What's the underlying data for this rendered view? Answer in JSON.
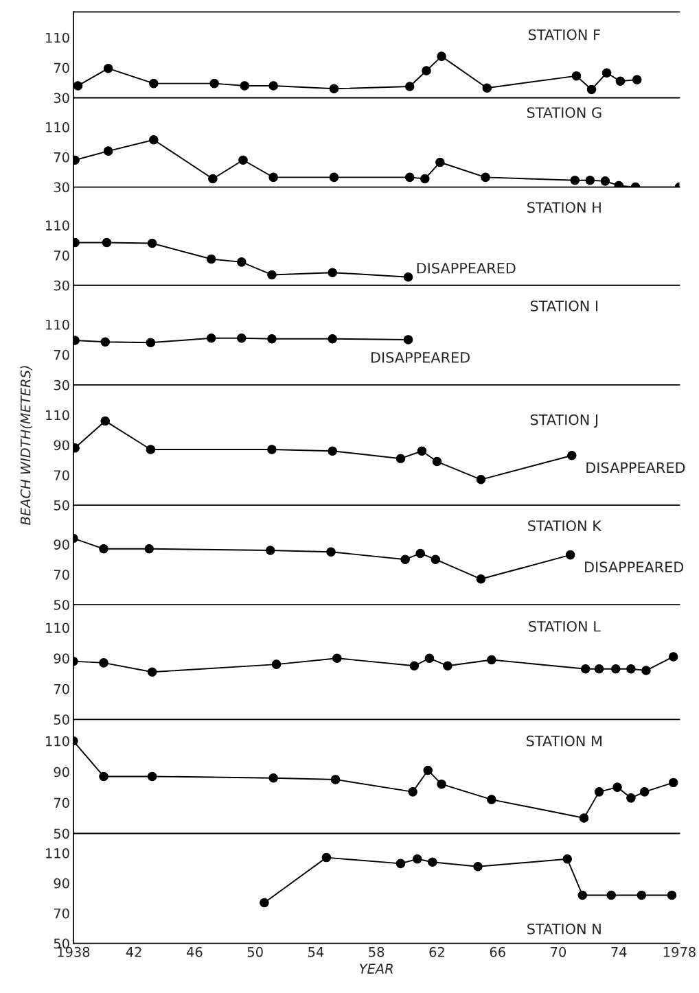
{
  "chart_data": [
    {
      "type": "line",
      "title": "STATION F",
      "tick_labels": "y",
      "marker": "circle",
      "line_style": "solid",
      "grid": false,
      "xlim": [
        1938,
        1978
      ],
      "ylim": [
        30,
        144
      ],
      "yticks": [
        30,
        70,
        110
      ],
      "xticks": [
        {
          "value": 1938,
          "label": null
        },
        {
          "value": 1942,
          "label": null
        },
        {
          "value": 1946,
          "label": null
        },
        {
          "value": 1950,
          "label": null
        },
        {
          "value": 1954,
          "label": null
        },
        {
          "value": 1958,
          "label": null
        },
        {
          "value": 1962,
          "label": null
        },
        {
          "value": 1966,
          "label": null
        },
        {
          "value": 1970,
          "label": null
        },
        {
          "value": 1974,
          "label": null
        },
        {
          "value": 1978,
          "label": null
        }
      ],
      "x": [
        1938.3,
        1940.3,
        1943.3,
        1947.3,
        1949.3,
        1951.2,
        1955.2,
        1960.2,
        1961.3,
        1962.3,
        1965.3,
        1971.2,
        1972.2,
        1973.2,
        1974.1,
        1975.2
      ],
      "series": [
        {
          "color": "#000000",
          "values": [
            46,
            69,
            49,
            49,
            46,
            46,
            42,
            45,
            66,
            85,
            43,
            59,
            41,
            63,
            52,
            54
          ]
        }
      ]
    },
    {
      "type": "line",
      "title": "STATION G",
      "tick_labels": "y",
      "marker": "circle",
      "line_style": "solid",
      "grid": false,
      "xlim": [
        1938,
        1978
      ],
      "ylim": [
        30,
        149
      ],
      "yticks": [
        30,
        70,
        110
      ],
      "xticks": [
        {
          "value": 1938,
          "label": null
        },
        {
          "value": 1942,
          "label": null
        },
        {
          "value": 1946,
          "label": null
        },
        {
          "value": 1950,
          "label": null
        },
        {
          "value": 1954,
          "label": null
        },
        {
          "value": 1958,
          "label": null
        },
        {
          "value": 1962,
          "label": null
        },
        {
          "value": 1966,
          "label": null
        },
        {
          "value": 1970,
          "label": null
        },
        {
          "value": 1974,
          "label": null
        },
        {
          "value": 1978,
          "label": null
        }
      ],
      "x": [
        1938.1,
        1940.3,
        1943.3,
        1947.2,
        1949.2,
        1951.2,
        1955.2,
        1960.2,
        1961.2,
        1962.2,
        1965.2,
        1971.1,
        1972.1,
        1973.1,
        1974.0,
        1975.1,
        1978.0
      ],
      "series": [
        {
          "color": "#000000",
          "values": [
            66,
            78,
            93,
            41,
            66,
            43,
            43,
            43,
            41,
            63,
            43,
            39,
            39,
            38,
            32,
            30,
            30
          ]
        }
      ]
    },
    {
      "type": "line",
      "title": "STATION H",
      "tick_labels": "y",
      "marker": "circle",
      "line_style": "solid",
      "grid": false,
      "xlim": [
        1938,
        1978
      ],
      "ylim": [
        30,
        161
      ],
      "yticks": [
        30,
        70,
        110
      ],
      "xticks": [
        {
          "value": 1938,
          "label": null
        },
        {
          "value": 1942,
          "label": null
        },
        {
          "value": 1946,
          "label": null
        },
        {
          "value": 1950,
          "label": null
        },
        {
          "value": 1954,
          "label": null
        },
        {
          "value": 1958,
          "label": null
        },
        {
          "value": 1962,
          "label": null
        },
        {
          "value": 1966,
          "label": null
        },
        {
          "value": 1970,
          "label": null
        },
        {
          "value": 1974,
          "label": null
        },
        {
          "value": 1978,
          "label": null
        }
      ],
      "x": [
        1938.1,
        1940.2,
        1943.2,
        1947.1,
        1949.1,
        1951.1,
        1955.1,
        1960.1
      ],
      "series": [
        {
          "color": "#000000",
          "values": [
            87,
            87,
            86,
            65,
            61,
            44,
            47,
            41
          ]
        }
      ],
      "annotations": [
        {
          "text": "DISAPPEARED",
          "x": 1960.1,
          "y": 41
        }
      ]
    },
    {
      "type": "line",
      "title": "STATION I",
      "tick_labels": "y",
      "marker": "circle",
      "line_style": "solid",
      "grid": false,
      "xlim": [
        1938,
        1978
      ],
      "ylim": [
        30,
        162
      ],
      "yticks": [
        30,
        70,
        110
      ],
      "xticks": [
        {
          "value": 1938,
          "label": null
        },
        {
          "value": 1942,
          "label": null
        },
        {
          "value": 1946,
          "label": null
        },
        {
          "value": 1950,
          "label": null
        },
        {
          "value": 1954,
          "label": null
        },
        {
          "value": 1958,
          "label": null
        },
        {
          "value": 1962,
          "label": null
        },
        {
          "value": 1966,
          "label": null
        },
        {
          "value": 1970,
          "label": null
        },
        {
          "value": 1974,
          "label": null
        },
        {
          "value": 1978,
          "label": null
        }
      ],
      "x": [
        1938.1,
        1940.1,
        1943.1,
        1947.1,
        1949.1,
        1951.1,
        1955.1,
        1960.1
      ],
      "series": [
        {
          "color": "#000000",
          "values": [
            89,
            87,
            86,
            92,
            92,
            91,
            91,
            90
          ]
        }
      ],
      "annotations": [
        {
          "text": "DISAPPEARED",
          "x": 1960.1,
          "y": 90
        }
      ]
    },
    {
      "type": "line",
      "title": "STATION J",
      "ylabel": "BEACH WIDTH(METERS)",
      "tick_labels": "y",
      "marker": "circle",
      "line_style": "solid",
      "grid": false,
      "xlim": [
        1938,
        1978
      ],
      "ylim": [
        50,
        130
      ],
      "yticks": [
        50,
        70,
        90,
        110
      ],
      "xticks": [
        {
          "value": 1938,
          "label": null
        },
        {
          "value": 1942,
          "label": null
        },
        {
          "value": 1946,
          "label": null
        },
        {
          "value": 1950,
          "label": null
        },
        {
          "value": 1954,
          "label": null
        },
        {
          "value": 1958,
          "label": null
        },
        {
          "value": 1962,
          "label": null
        },
        {
          "value": 1966,
          "label": null
        },
        {
          "value": 1970,
          "label": null
        },
        {
          "value": 1974,
          "label": null
        },
        {
          "value": 1978,
          "label": null
        }
      ],
      "x": [
        1938.1,
        1940.1,
        1943.1,
        1951.1,
        1955.1,
        1959.6,
        1961.0,
        1962.0,
        1964.9,
        1970.9
      ],
      "series": [
        {
          "color": "#000000",
          "values": [
            88,
            106,
            87,
            87,
            86,
            81,
            86,
            79,
            67,
            83
          ]
        }
      ],
      "annotations": [
        {
          "text": "DISAPPEARED",
          "x": 1970.9,
          "y": 83
        }
      ]
    },
    {
      "type": "line",
      "title": "STATION K",
      "tick_labels": "y",
      "marker": "circle",
      "line_style": "solid",
      "grid": false,
      "xlim": [
        1938,
        1978
      ],
      "ylim": [
        50,
        116
      ],
      "yticks": [
        50,
        70,
        90
      ],
      "xticks": [
        {
          "value": 1938,
          "label": null
        },
        {
          "value": 1942,
          "label": null
        },
        {
          "value": 1946,
          "label": null
        },
        {
          "value": 1950,
          "label": null
        },
        {
          "value": 1954,
          "label": null
        },
        {
          "value": 1958,
          "label": null
        },
        {
          "value": 1962,
          "label": null
        },
        {
          "value": 1966,
          "label": null
        },
        {
          "value": 1970,
          "label": null
        },
        {
          "value": 1974,
          "label": null
        },
        {
          "value": 1978,
          "label": null
        }
      ],
      "x": [
        1938.0,
        1940.0,
        1943.0,
        1951.0,
        1955.0,
        1959.9,
        1960.9,
        1961.9,
        1964.9,
        1970.8
      ],
      "series": [
        {
          "color": "#000000",
          "values": [
            94,
            87,
            87,
            86,
            85,
            80,
            84,
            80,
            67,
            83
          ]
        }
      ],
      "annotations": [
        {
          "text": "DISAPPEARED",
          "x": 1970.8,
          "y": 83
        }
      ]
    },
    {
      "type": "line",
      "title": "STATION L",
      "tick_labels": "y",
      "marker": "circle",
      "line_style": "solid",
      "grid": false,
      "xlim": [
        1938,
        1978
      ],
      "ylim": [
        50,
        125
      ],
      "yticks": [
        50,
        70,
        90,
        110
      ],
      "xticks": [
        {
          "value": 1938,
          "label": null
        },
        {
          "value": 1942,
          "label": null
        },
        {
          "value": 1946,
          "label": null
        },
        {
          "value": 1950,
          "label": null
        },
        {
          "value": 1954,
          "label": null
        },
        {
          "value": 1958,
          "label": null
        },
        {
          "value": 1962,
          "label": null
        },
        {
          "value": 1966,
          "label": null
        },
        {
          "value": 1970,
          "label": null
        },
        {
          "value": 1974,
          "label": null
        },
        {
          "value": 1978,
          "label": null
        }
      ],
      "x": [
        1938.0,
        1940.0,
        1943.2,
        1951.4,
        1955.4,
        1960.5,
        1961.5,
        1962.7,
        1965.6,
        1971.8,
        1972.7,
        1973.8,
        1974.8,
        1975.8,
        1977.6
      ],
      "series": [
        {
          "color": "#000000",
          "values": [
            88,
            87,
            81,
            86,
            90,
            85,
            90,
            85,
            89,
            83,
            83,
            83,
            83,
            82,
            91
          ]
        }
      ]
    },
    {
      "type": "line",
      "title": "STATION M",
      "tick_labels": "y",
      "marker": "circle",
      "line_style": "solid",
      "grid": false,
      "xlim": [
        1938,
        1978
      ],
      "ylim": [
        50,
        124
      ],
      "yticks": [
        50,
        70,
        90,
        110
      ],
      "xticks": [
        {
          "value": 1938,
          "label": null
        },
        {
          "value": 1942,
          "label": null
        },
        {
          "value": 1946,
          "label": null
        },
        {
          "value": 1950,
          "label": null
        },
        {
          "value": 1954,
          "label": null
        },
        {
          "value": 1958,
          "label": null
        },
        {
          "value": 1962,
          "label": null
        },
        {
          "value": 1966,
          "label": null
        },
        {
          "value": 1970,
          "label": null
        },
        {
          "value": 1974,
          "label": null
        },
        {
          "value": 1978,
          "label": null
        }
      ],
      "x": [
        1938.0,
        1940.0,
        1943.2,
        1951.2,
        1955.3,
        1960.4,
        1961.4,
        1962.3,
        1965.6,
        1971.7,
        1972.7,
        1973.9,
        1974.8,
        1975.7,
        1977.6
      ],
      "series": [
        {
          "color": "#000000",
          "values": [
            110,
            87,
            87,
            86,
            85,
            77,
            91,
            82,
            72,
            60,
            77,
            80,
            73,
            77,
            83
          ]
        }
      ]
    },
    {
      "type": "line",
      "title": "STATION N",
      "xlabel": "YEAR",
      "marker": "circle",
      "line_style": "solid",
      "grid": false,
      "xlim": [
        1938,
        1978
      ],
      "ylim": [
        50,
        123
      ],
      "yticks": [
        50,
        70,
        90,
        110
      ],
      "xticks": [
        1938,
        {
          "value": 1942,
          "label": "42"
        },
        {
          "value": 1946,
          "label": "46"
        },
        {
          "value": 1950,
          "label": "50"
        },
        {
          "value": 1954,
          "label": "54"
        },
        {
          "value": 1958,
          "label": "58"
        },
        {
          "value": 1962,
          "label": "62"
        },
        {
          "value": 1966,
          "label": "66"
        },
        {
          "value": 1970,
          "label": "70"
        },
        {
          "value": 1974,
          "label": "74"
        },
        1978
      ],
      "x": [
        1950.6,
        1954.7,
        1959.6,
        1960.7,
        1961.7,
        1964.7,
        1970.6,
        1971.6,
        1973.5,
        1975.5,
        1977.5
      ],
      "series": [
        {
          "color": "#000000",
          "values": [
            77,
            107,
            103,
            106,
            104,
            101,
            106,
            82,
            82,
            82,
            82
          ]
        }
      ]
    }
  ]
}
